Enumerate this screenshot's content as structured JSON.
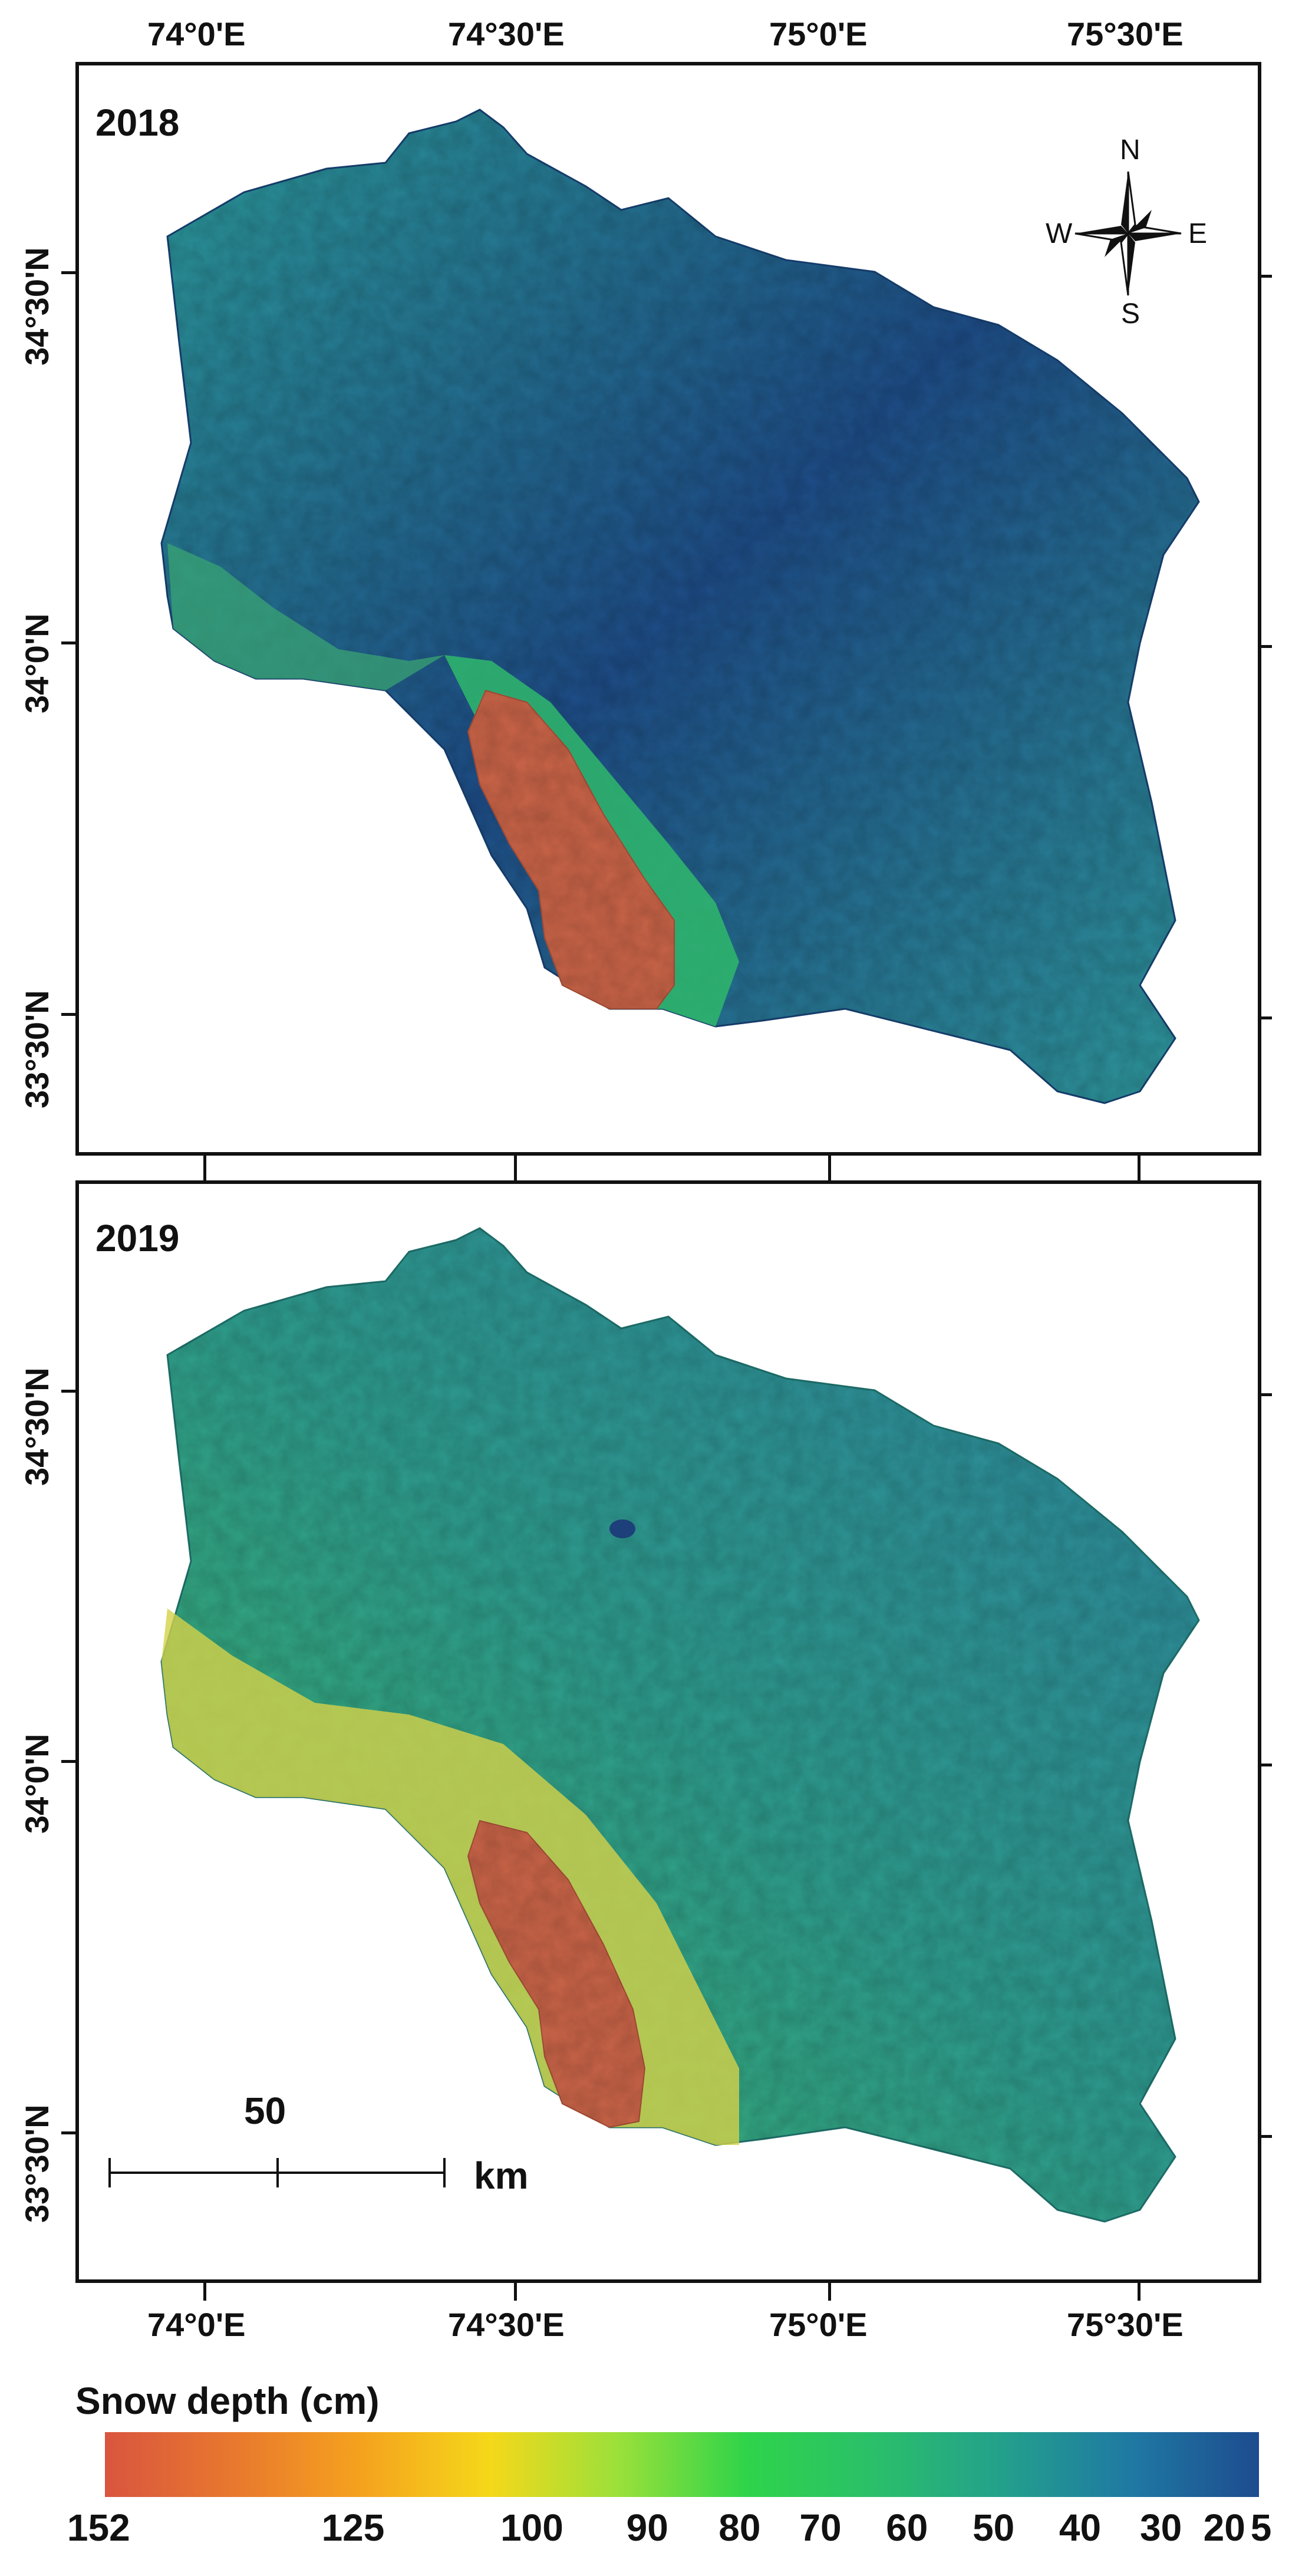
{
  "map_frame": {
    "lon_labels": [
      "74°0'E",
      "74°30'E",
      "75°0'E",
      "75°30'E"
    ],
    "lat_labels": [
      "34°30'N",
      "34°0'N",
      "33°30'N"
    ]
  },
  "panels": [
    {
      "year": "2018",
      "colors": {
        "high": "#c96448",
        "mid": "#33a8a0",
        "low": "#1e4f8c"
      }
    },
    {
      "year": "2019",
      "colors": {
        "high": "#c96448",
        "mid": "#3fb96e",
        "low": "#2f8ea8"
      }
    }
  ],
  "north_arrow": {
    "n": "N",
    "e": "E",
    "s": "S",
    "w": "W",
    "icon": "compass-rose-icon"
  },
  "scale_bar": {
    "value": "50",
    "unit": "km"
  },
  "legend": {
    "title": "Snow depth (cm)",
    "ticks": [
      "152",
      "125",
      "100",
      "90",
      "80",
      "70",
      "60",
      "50",
      "40",
      "30",
      "20",
      "5"
    ],
    "gradient": [
      "#d9553f",
      "#e8782e",
      "#f5a21e",
      "#f5d81a",
      "#9be03a",
      "#2fd44a",
      "#2abf6a",
      "#23a08c",
      "#1f79a3",
      "#1d4c8f"
    ]
  }
}
